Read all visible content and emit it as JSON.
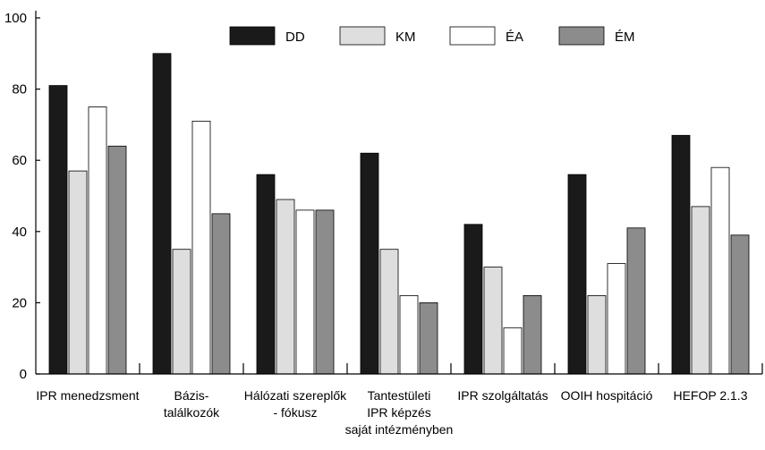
{
  "chart_data": {
    "type": "bar",
    "title": "",
    "xlabel": "",
    "ylabel": "",
    "ylim": [
      0,
      100
    ],
    "yticks": [
      0,
      20,
      40,
      60,
      80,
      100
    ],
    "grid": false,
    "legend_position": "top",
    "categories": [
      [
        "IPR menedzsment"
      ],
      [
        "Bázis-",
        "találkozók"
      ],
      [
        "Hálózati szereplők",
        "- fókusz"
      ],
      [
        "Tantestületi",
        "IPR képzés",
        "saját intézményben"
      ],
      [
        "IPR szolgáltatás"
      ],
      [
        "OOIH hospitáció"
      ],
      [
        "HEFOP 2.1.3"
      ]
    ],
    "series": [
      {
        "name": "DD",
        "color": "#1a1a1a",
        "values": [
          81,
          90,
          56,
          62,
          42,
          56,
          67
        ]
      },
      {
        "name": "KM",
        "color": "#dedede",
        "values": [
          57,
          35,
          49,
          35,
          30,
          22,
          47
        ]
      },
      {
        "name": "ÉA",
        "color": "#ffffff",
        "values": [
          75,
          71,
          46,
          22,
          13,
          31,
          58
        ]
      },
      {
        "name": "ÉM",
        "color": "#8c8c8c",
        "values": [
          64,
          45,
          46,
          20,
          22,
          41,
          39
        ]
      }
    ]
  }
}
